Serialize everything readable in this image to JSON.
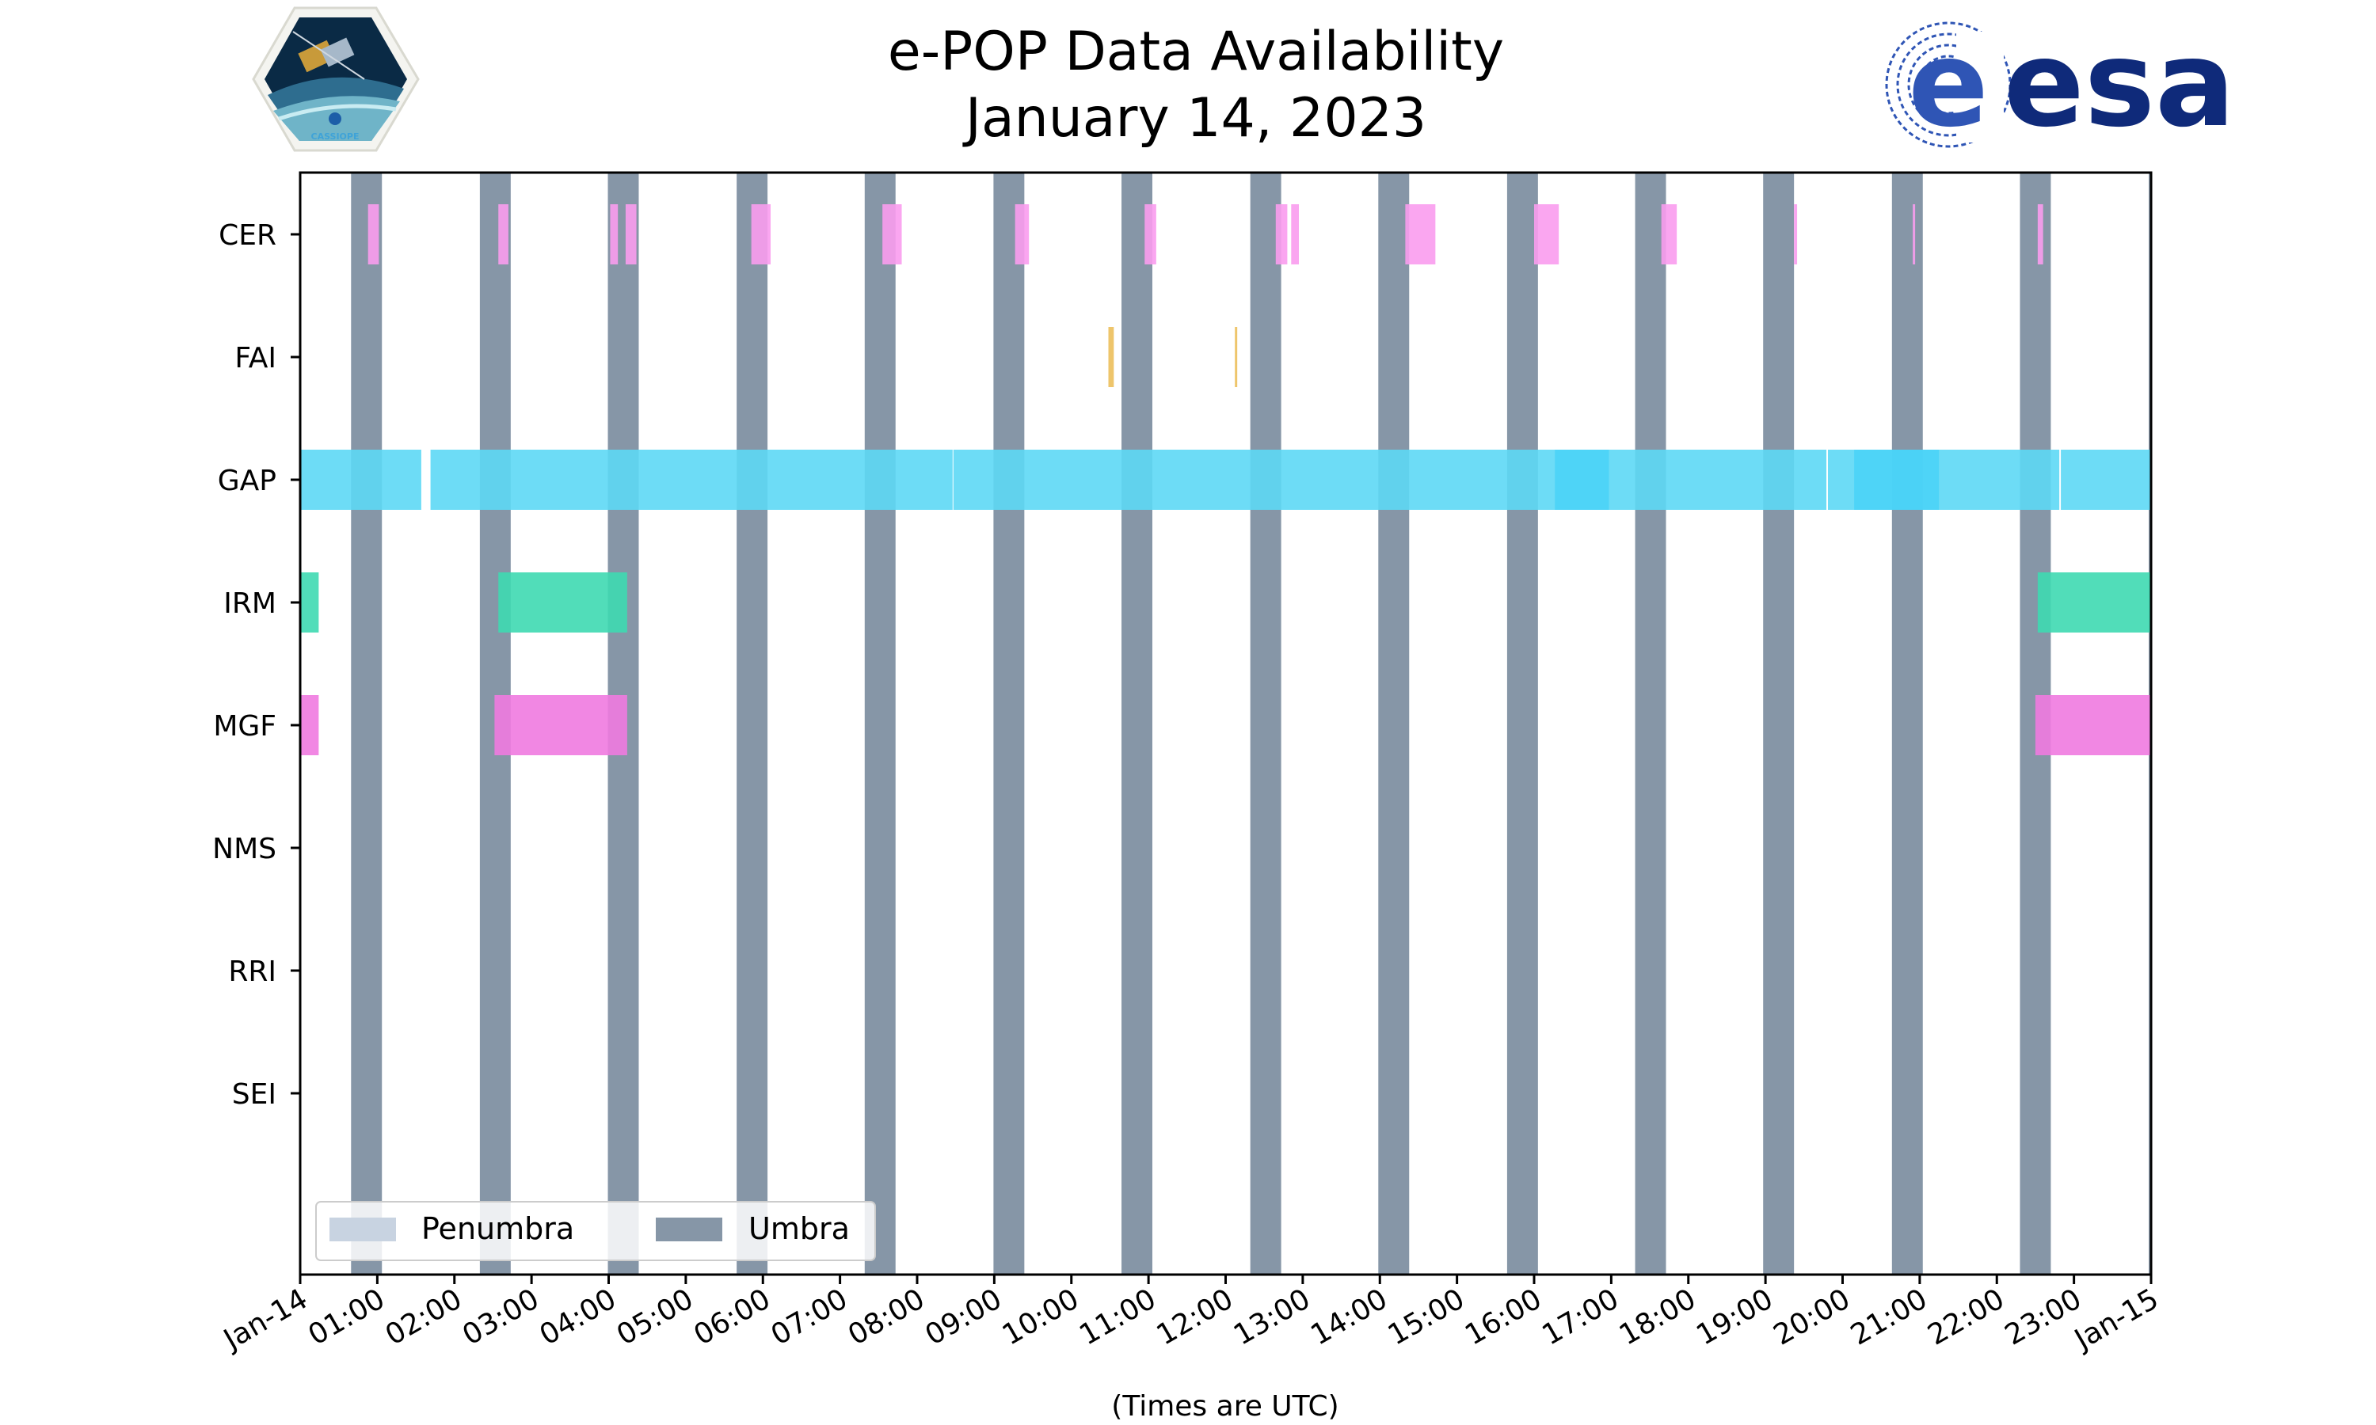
{
  "header": {
    "title_line1": "e-POP Data Availability",
    "title_line2": "January 14, 2023"
  },
  "logos": {
    "mission_badge": {
      "name": "cassiope-badge-logo",
      "text": "CASSIOPE"
    },
    "agency": {
      "name": "esa-logo",
      "text": "esa",
      "color": "#0f2a7a"
    }
  },
  "chart_data": {
    "type": "timeline",
    "title": "e-POP Data Availability\nJanuary 14, 2023",
    "xlabel": "(Times are UTC)",
    "ylabel": "",
    "xlim_hours": [
      0,
      24
    ],
    "x_tick_hours": [
      0,
      1,
      2,
      3,
      4,
      5,
      6,
      7,
      8,
      9,
      10,
      11,
      12,
      13,
      14,
      15,
      16,
      17,
      18,
      19,
      20,
      21,
      22,
      23,
      24
    ],
    "x_tick_labels": [
      "Jan-14",
      "01:00",
      "02:00",
      "03:00",
      "04:00",
      "05:00",
      "06:00",
      "07:00",
      "08:00",
      "09:00",
      "10:00",
      "11:00",
      "12:00",
      "13:00",
      "14:00",
      "15:00",
      "16:00",
      "17:00",
      "18:00",
      "19:00",
      "20:00",
      "21:00",
      "22:00",
      "23:00",
      "Jan-15"
    ],
    "categories": [
      "CER",
      "FAI",
      "GAP",
      "IRM",
      "MGF",
      "NMS",
      "RRI",
      "SEI"
    ],
    "grid": false,
    "legend": {
      "placement": "lower-left",
      "entries": [
        {
          "label": "Penumbra",
          "color": "#c8d3e1"
        },
        {
          "label": "Umbra",
          "color": "#8696a7"
        }
      ]
    },
    "umbra_hours": [
      [
        0.66,
        1.06
      ],
      [
        2.33,
        2.73
      ],
      [
        3.99,
        4.39
      ],
      [
        5.66,
        6.06
      ],
      [
        7.32,
        7.72
      ],
      [
        8.99,
        9.39
      ],
      [
        10.65,
        11.05
      ],
      [
        12.32,
        12.72
      ],
      [
        13.98,
        14.38
      ],
      [
        15.65,
        16.05
      ],
      [
        17.31,
        17.71
      ],
      [
        18.97,
        19.37
      ],
      [
        20.64,
        21.04
      ],
      [
        22.3,
        22.7
      ],
      [
        23.97,
        24.0
      ]
    ],
    "series": [
      {
        "name": "CER",
        "color": "#f99cee",
        "segments": [
          [
            0.88,
            1.02
          ],
          [
            2.57,
            2.7
          ],
          [
            4.02,
            4.12
          ],
          [
            4.22,
            4.36
          ],
          [
            5.85,
            6.1
          ],
          [
            7.55,
            7.8
          ],
          [
            9.27,
            9.45
          ],
          [
            10.95,
            11.1
          ],
          [
            12.65,
            12.8
          ],
          [
            12.85,
            12.95
          ],
          [
            14.33,
            14.72
          ],
          [
            16.0,
            16.32
          ],
          [
            17.65,
            17.85
          ],
          [
            19.37,
            19.41
          ],
          [
            20.91,
            20.94
          ],
          [
            22.53,
            22.6
          ]
        ]
      },
      {
        "name": "FAI",
        "color": "#eec56b",
        "segments": [
          [
            10.48,
            10.55
          ],
          [
            12.12,
            12.15
          ]
        ]
      },
      {
        "name": "GAP",
        "color": "#5dd8f5",
        "segments": [
          [
            0.0,
            1.57
          ],
          [
            1.69,
            8.46
          ],
          [
            8.47,
            19.79
          ],
          [
            19.81,
            22.81
          ],
          [
            22.83,
            24.0
          ]
        ],
        "dense_segments": [
          [
            16.27,
            16.97
          ],
          [
            20.15,
            21.25
          ]
        ],
        "dense_color": "#46d2f7"
      },
      {
        "name": "IRM",
        "color": "#3ed9b1",
        "segments": [
          [
            0.0,
            0.24
          ],
          [
            2.57,
            4.24
          ],
          [
            22.53,
            24.0
          ]
        ]
      },
      {
        "name": "MGF",
        "color": "#f07ae0",
        "segments": [
          [
            0.0,
            0.24
          ],
          [
            2.52,
            4.24
          ],
          [
            22.5,
            24.0
          ]
        ]
      },
      {
        "name": "NMS",
        "color": "#cccccc",
        "segments": []
      },
      {
        "name": "RRI",
        "color": "#cccccc",
        "segments": []
      },
      {
        "name": "SEI",
        "color": "#cccccc",
        "segments": []
      }
    ]
  }
}
